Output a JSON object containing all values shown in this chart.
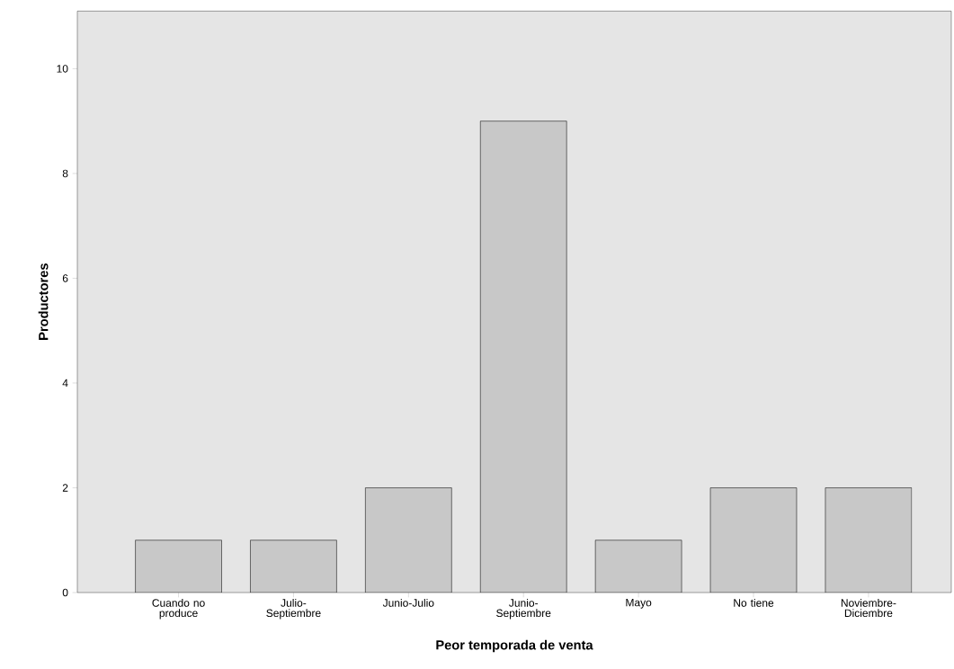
{
  "chart_data": {
    "type": "bar",
    "xlabel": "Peor temporada de venta",
    "ylabel": "Productores",
    "categories": [
      "Cuando no produce",
      "Julio-Septiembre",
      "Junio-Julio",
      "Junio-Septiembre",
      "Mayo",
      "No tiene",
      "Noviembre-Diciembre"
    ],
    "values": [
      1,
      1,
      2,
      9,
      1,
      2,
      2
    ],
    "color": "#c8c8c8",
    "ylim": [
      0,
      11.1
    ],
    "yticks": [
      0,
      2,
      4,
      6,
      8,
      10
    ],
    "grid": false
  }
}
